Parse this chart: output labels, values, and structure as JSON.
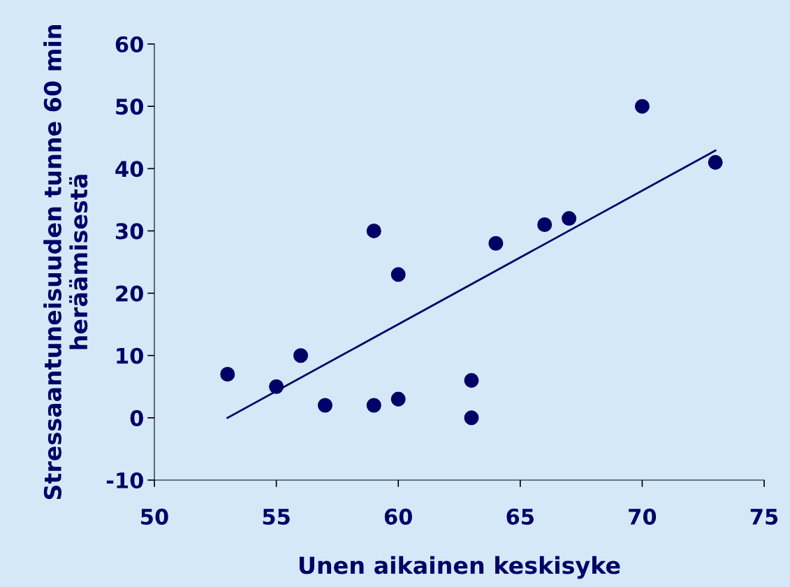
{
  "chart_data": {
    "type": "scatter",
    "xlabel": "Unen aikainen keskisyke",
    "ylabel": "Stressaantuneisuuden tunne 60 min heräämisestä",
    "series": [
      {
        "color": "#000066",
        "marker": "circle",
        "x": [
          53,
          55,
          56,
          57,
          59,
          59,
          60,
          60,
          63,
          63,
          64,
          66,
          67,
          70,
          73
        ],
        "values": [
          7,
          5,
          10,
          2,
          30,
          2,
          23,
          3,
          6,
          0,
          28,
          31,
          32,
          50,
          41
        ]
      },
      {
        "type": "line",
        "color": "#000066",
        "marker": "none",
        "line_style": "solid",
        "x": [
          53,
          73
        ],
        "values": [
          0,
          42.9
        ]
      }
    ],
    "xlim": [
      50,
      75
    ],
    "xticks": [
      50,
      55,
      60,
      65,
      70,
      75
    ],
    "ylim": [
      -10,
      60
    ],
    "yticks": [
      -10,
      0,
      10,
      20,
      30,
      40,
      50,
      60
    ],
    "grid": false
  }
}
